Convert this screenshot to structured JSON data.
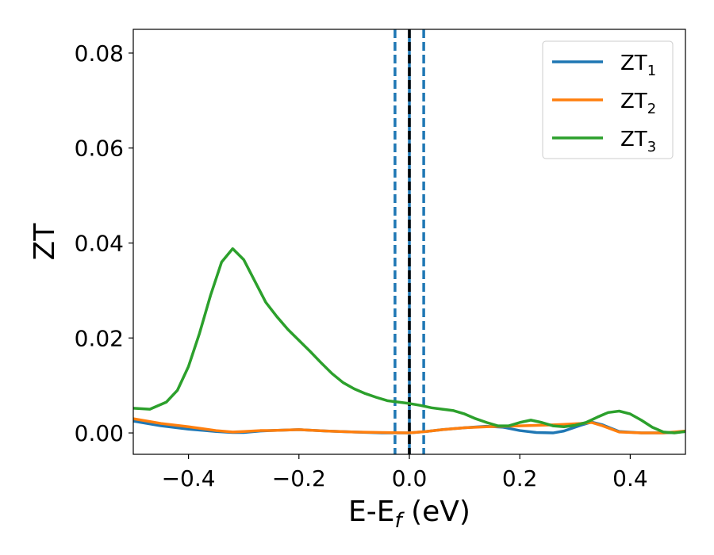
{
  "chart_data": {
    "type": "line",
    "xlabel": {
      "base": "E-E",
      "sub": "f",
      "unit": " (eV)"
    },
    "ylabel": "ZT",
    "xlim": [
      -0.5,
      0.5
    ],
    "ylim": [
      -0.0045,
      0.085
    ],
    "x_ticks": [
      -0.4,
      -0.2,
      0.0,
      0.2,
      0.4
    ],
    "x_tick_labels": [
      "−0.4",
      "−0.2",
      "0.0",
      "0.2",
      "0.4"
    ],
    "y_ticks": [
      0.0,
      0.02,
      0.04,
      0.06,
      0.08
    ],
    "y_tick_labels": [
      "0.00",
      "0.02",
      "0.04",
      "0.06",
      "0.08"
    ],
    "grid": false,
    "legend_position": "top-right",
    "vertical_lines": [
      {
        "x": 0.0,
        "color": "#1f77b4",
        "style": "solid"
      },
      {
        "x": 0.0,
        "color": "#000000",
        "style": "dashed"
      },
      {
        "x": -0.026,
        "color": "#1f77b4",
        "style": "dashed"
      },
      {
        "x": 0.026,
        "color": "#1f77b4",
        "style": "dashed"
      }
    ],
    "series": [
      {
        "name": "ZT",
        "sub": "1",
        "color": "#1f77b4",
        "points": [
          [
            -0.5,
            0.0025
          ],
          [
            -0.45,
            0.0015
          ],
          [
            -0.4,
            0.0008
          ],
          [
            -0.35,
            0.0003
          ],
          [
            -0.32,
            0.0001
          ],
          [
            -0.3,
            0.0001
          ],
          [
            -0.27,
            0.0004
          ],
          [
            -0.25,
            0.0005
          ],
          [
            -0.2,
            0.0007
          ],
          [
            -0.15,
            0.0004
          ],
          [
            -0.1,
            0.0002
          ],
          [
            -0.05,
            0.0
          ],
          [
            0.0,
            0.0
          ],
          [
            0.03,
            0.0003
          ],
          [
            0.06,
            0.0007
          ],
          [
            0.1,
            0.0011
          ],
          [
            0.14,
            0.0014
          ],
          [
            0.17,
            0.0012
          ],
          [
            0.2,
            0.0005
          ],
          [
            0.23,
            0.0001
          ],
          [
            0.26,
            0.0
          ],
          [
            0.28,
            0.0004
          ],
          [
            0.31,
            0.0016
          ],
          [
            0.33,
            0.0023
          ],
          [
            0.35,
            0.0017
          ],
          [
            0.38,
            0.0003
          ],
          [
            0.42,
            0.0
          ],
          [
            0.46,
            0.0
          ],
          [
            0.48,
            0.0001
          ],
          [
            0.5,
            0.0003
          ]
        ]
      },
      {
        "name": "ZT",
        "sub": "2",
        "color": "#ff7f0e",
        "points": [
          [
            -0.5,
            0.003
          ],
          [
            -0.45,
            0.002
          ],
          [
            -0.4,
            0.0013
          ],
          [
            -0.35,
            0.0005
          ],
          [
            -0.32,
            0.0002
          ],
          [
            -0.3,
            0.0003
          ],
          [
            -0.27,
            0.0005
          ],
          [
            -0.25,
            0.0005
          ],
          [
            -0.2,
            0.0007
          ],
          [
            -0.15,
            0.0004
          ],
          [
            -0.1,
            0.0002
          ],
          [
            -0.05,
            0.0001
          ],
          [
            0.0,
            0.0
          ],
          [
            0.03,
            0.0003
          ],
          [
            0.06,
            0.0007
          ],
          [
            0.1,
            0.0011
          ],
          [
            0.14,
            0.0013
          ],
          [
            0.17,
            0.0014
          ],
          [
            0.2,
            0.0015
          ],
          [
            0.23,
            0.0016
          ],
          [
            0.26,
            0.0017
          ],
          [
            0.28,
            0.0018
          ],
          [
            0.31,
            0.002
          ],
          [
            0.33,
            0.0022
          ],
          [
            0.35,
            0.0015
          ],
          [
            0.38,
            0.0002
          ],
          [
            0.42,
            0.0
          ],
          [
            0.46,
            0.0
          ],
          [
            0.48,
            0.0002
          ],
          [
            0.5,
            0.0004
          ]
        ]
      },
      {
        "name": "ZT",
        "sub": "3",
        "color": "#2ca02c",
        "points": [
          [
            -0.5,
            0.0052
          ],
          [
            -0.47,
            0.005
          ],
          [
            -0.44,
            0.0065
          ],
          [
            -0.42,
            0.009
          ],
          [
            -0.4,
            0.014
          ],
          [
            -0.38,
            0.021
          ],
          [
            -0.36,
            0.029
          ],
          [
            -0.34,
            0.036
          ],
          [
            -0.32,
            0.0388
          ],
          [
            -0.3,
            0.0365
          ],
          [
            -0.28,
            0.032
          ],
          [
            -0.26,
            0.0275
          ],
          [
            -0.24,
            0.0245
          ],
          [
            -0.22,
            0.0218
          ],
          [
            -0.2,
            0.0195
          ],
          [
            -0.18,
            0.0172
          ],
          [
            -0.16,
            0.0148
          ],
          [
            -0.14,
            0.0125
          ],
          [
            -0.12,
            0.0106
          ],
          [
            -0.1,
            0.0093
          ],
          [
            -0.08,
            0.0083
          ],
          [
            -0.06,
            0.0075
          ],
          [
            -0.04,
            0.0068
          ],
          [
            -0.02,
            0.0065
          ],
          [
            0.0,
            0.0062
          ],
          [
            0.02,
            0.0058
          ],
          [
            0.04,
            0.0053
          ],
          [
            0.06,
            0.005
          ],
          [
            0.08,
            0.0047
          ],
          [
            0.1,
            0.004
          ],
          [
            0.12,
            0.003
          ],
          [
            0.14,
            0.0022
          ],
          [
            0.16,
            0.0015
          ],
          [
            0.18,
            0.0015
          ],
          [
            0.2,
            0.0022
          ],
          [
            0.22,
            0.0027
          ],
          [
            0.24,
            0.0022
          ],
          [
            0.26,
            0.0015
          ],
          [
            0.28,
            0.0013
          ],
          [
            0.3,
            0.0016
          ],
          [
            0.32,
            0.0022
          ],
          [
            0.34,
            0.0033
          ],
          [
            0.36,
            0.0043
          ],
          [
            0.38,
            0.0046
          ],
          [
            0.4,
            0.004
          ],
          [
            0.42,
            0.0027
          ],
          [
            0.44,
            0.0012
          ],
          [
            0.46,
            0.0002
          ],
          [
            0.48,
            0.0
          ],
          [
            0.5,
            0.0003
          ]
        ]
      }
    ]
  }
}
